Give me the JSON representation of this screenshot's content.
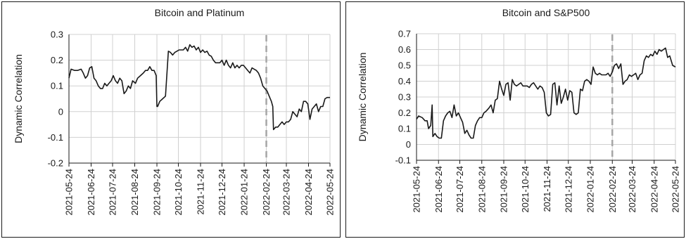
{
  "chart_data": [
    {
      "type": "line",
      "title": "Bitcoin and Platinum",
      "xlabel": "",
      "ylabel": "Dynamic Correlation",
      "ylim": [
        -0.2,
        0.3
      ],
      "yticks": [
        -0.2,
        -0.1,
        0,
        0.1,
        0.2,
        0.3
      ],
      "ytick_labels": [
        "-0.2",
        "-0.1",
        "0",
        "0.1",
        "0.2",
        "0.3"
      ],
      "xlim": [
        "2021-05-24",
        "2022-05-24"
      ],
      "xticks": [
        "2021-05-24",
        "2021-06-24",
        "2021-07-24",
        "2021-08-24",
        "2021-09-24",
        "2021-10-24",
        "2021-11-24",
        "2021-12-24",
        "2022-01-24",
        "2022-02-24",
        "2022-03-24",
        "2022-04-24",
        "2022-05-24"
      ],
      "grid": true,
      "reference_line": {
        "x": "2022-02-24",
        "style": "dashed",
        "color": "#a6a6a6"
      },
      "series": [
        {
          "color": "#1a1a1a",
          "x": [
            "2021-05-24",
            "2021-05-27",
            "2021-06-01",
            "2021-06-05",
            "2021-06-10",
            "2021-06-13",
            "2021-06-16",
            "2021-06-19",
            "2021-06-22",
            "2021-06-25",
            "2021-06-28",
            "2021-07-01",
            "2021-07-04",
            "2021-07-07",
            "2021-07-10",
            "2021-07-13",
            "2021-07-16",
            "2021-07-19",
            "2021-07-22",
            "2021-07-25",
            "2021-07-28",
            "2021-07-31",
            "2021-08-03",
            "2021-08-06",
            "2021-08-09",
            "2021-08-12",
            "2021-08-15",
            "2021-08-18",
            "2021-08-21",
            "2021-08-25",
            "2021-08-28",
            "2021-09-01",
            "2021-09-05",
            "2021-09-08",
            "2021-09-11",
            "2021-09-14",
            "2021-09-17",
            "2021-09-20",
            "2021-09-23",
            "2021-09-24",
            "2021-09-25",
            "2021-09-28",
            "2021-10-02",
            "2021-10-06",
            "2021-10-10",
            "2021-10-13",
            "2021-10-16",
            "2021-10-19",
            "2021-10-22",
            "2021-10-25",
            "2021-10-28",
            "2021-10-31",
            "2021-11-03",
            "2021-11-06",
            "2021-11-09",
            "2021-11-12",
            "2021-11-15",
            "2021-11-18",
            "2021-11-21",
            "2021-11-24",
            "2021-11-27",
            "2021-11-30",
            "2021-12-03",
            "2021-12-06",
            "2021-12-09",
            "2021-12-12",
            "2021-12-15",
            "2021-12-18",
            "2021-12-21",
            "2021-12-24",
            "2021-12-27",
            "2021-12-30",
            "2022-01-02",
            "2022-01-05",
            "2022-01-08",
            "2022-01-11",
            "2022-01-14",
            "2022-01-17",
            "2022-01-20",
            "2022-01-23",
            "2022-01-26",
            "2022-01-29",
            "2022-02-01",
            "2022-02-04",
            "2022-02-07",
            "2022-02-10",
            "2022-02-13",
            "2022-02-16",
            "2022-02-19",
            "2022-02-22",
            "2022-02-25",
            "2022-02-28",
            "2022-03-03",
            "2022-03-05",
            "2022-03-06",
            "2022-03-09",
            "2022-03-12",
            "2022-03-15",
            "2022-03-18",
            "2022-03-21",
            "2022-03-24",
            "2022-03-27",
            "2022-03-30",
            "2022-04-02",
            "2022-04-05",
            "2022-04-08",
            "2022-04-11",
            "2022-04-14",
            "2022-04-17",
            "2022-04-20",
            "2022-04-23",
            "2022-04-26",
            "2022-04-29",
            "2022-05-02",
            "2022-05-05",
            "2022-05-08",
            "2022-05-11",
            "2022-05-14",
            "2022-05-17",
            "2022-05-20",
            "2022-05-24"
          ],
          "values": [
            0.13,
            0.165,
            0.16,
            0.16,
            0.165,
            0.15,
            0.13,
            0.14,
            0.17,
            0.175,
            0.13,
            0.12,
            0.1,
            0.09,
            0.09,
            0.11,
            0.1,
            0.11,
            0.12,
            0.14,
            0.12,
            0.11,
            0.13,
            0.12,
            0.07,
            0.08,
            0.1,
            0.09,
            0.12,
            0.11,
            0.13,
            0.14,
            0.15,
            0.16,
            0.16,
            0.175,
            0.16,
            0.16,
            0.14,
            0.02,
            0.02,
            0.04,
            0.05,
            0.06,
            0.235,
            0.23,
            0.22,
            0.23,
            0.235,
            0.24,
            0.24,
            0.24,
            0.25,
            0.235,
            0.26,
            0.25,
            0.255,
            0.24,
            0.25,
            0.23,
            0.24,
            0.23,
            0.235,
            0.22,
            0.215,
            0.2,
            0.19,
            0.19,
            0.19,
            0.2,
            0.18,
            0.2,
            0.18,
            0.17,
            0.19,
            0.17,
            0.18,
            0.17,
            0.18,
            0.18,
            0.17,
            0.16,
            0.15,
            0.17,
            0.165,
            0.16,
            0.15,
            0.13,
            0.1,
            0.09,
            0.08,
            0.06,
            0.04,
            0.02,
            -0.07,
            -0.06,
            -0.06,
            -0.05,
            -0.04,
            -0.05,
            -0.04,
            -0.04,
            -0.03,
            0.0,
            -0.01,
            -0.02,
            0.01,
            0.0,
            0.04,
            0.04,
            0.03,
            -0.03,
            0.01,
            0.02,
            0.03,
            0.0,
            0.02,
            0.02,
            0.05,
            0.055,
            0.055
          ]
        }
      ]
    },
    {
      "type": "line",
      "title": "Bitcoin and S&P500",
      "xlabel": "",
      "ylabel": "Dynamic Correlation",
      "ylim": [
        -0.1,
        0.7
      ],
      "yticks": [
        -0.1,
        0,
        0.1,
        0.2,
        0.3,
        0.4,
        0.5,
        0.6,
        0.7
      ],
      "ytick_labels": [
        "-0.1",
        "0",
        "0.1",
        "0.2",
        "0.3",
        "0.4",
        "0.5",
        "0.6",
        "0.7"
      ],
      "xlim": [
        "2021-05-24",
        "2022-05-24"
      ],
      "xticks": [
        "2021-05-24",
        "2021-06-24",
        "2021-07-24",
        "2021-08-24",
        "2021-09-24",
        "2021-10-24",
        "2021-11-24",
        "2021-12-24",
        "2022-01-24",
        "2022-02-24",
        "2022-03-24",
        "2022-04-24",
        "2022-05-24"
      ],
      "grid": true,
      "reference_line": {
        "x": "2022-02-24",
        "style": "dashed",
        "color": "#a6a6a6"
      },
      "series": [
        {
          "color": "#1a1a1a",
          "x": [
            "2021-05-24",
            "2021-05-27",
            "2021-06-01",
            "2021-06-05",
            "2021-06-08",
            "2021-06-10",
            "2021-06-13",
            "2021-06-15",
            "2021-06-16",
            "2021-06-19",
            "2021-06-22",
            "2021-06-25",
            "2021-06-28",
            "2021-07-01",
            "2021-07-04",
            "2021-07-07",
            "2021-07-10",
            "2021-07-13",
            "2021-07-16",
            "2021-07-19",
            "2021-07-22",
            "2021-07-25",
            "2021-07-28",
            "2021-07-31",
            "2021-08-03",
            "2021-08-06",
            "2021-08-09",
            "2021-08-12",
            "2021-08-15",
            "2021-08-18",
            "2021-08-21",
            "2021-08-24",
            "2021-08-27",
            "2021-08-30",
            "2021-09-03",
            "2021-09-06",
            "2021-09-09",
            "2021-09-12",
            "2021-09-15",
            "2021-09-18",
            "2021-09-21",
            "2021-09-24",
            "2021-09-27",
            "2021-09-30",
            "2021-10-03",
            "2021-10-06",
            "2021-10-09",
            "2021-10-12",
            "2021-10-15",
            "2021-10-18",
            "2021-10-21",
            "2021-10-24",
            "2021-10-27",
            "2021-10-30",
            "2021-11-02",
            "2021-11-05",
            "2021-11-08",
            "2021-11-11",
            "2021-11-14",
            "2021-11-17",
            "2021-11-20",
            "2021-11-23",
            "2021-11-26",
            "2021-11-29",
            "2021-12-02",
            "2021-12-05",
            "2021-12-08",
            "2021-12-11",
            "2021-12-14",
            "2021-12-17",
            "2021-12-20",
            "2021-12-23",
            "2021-12-26",
            "2021-12-29",
            "2022-01-01",
            "2022-01-04",
            "2022-01-07",
            "2022-01-10",
            "2022-01-13",
            "2022-01-16",
            "2022-01-19",
            "2022-01-22",
            "2022-01-25",
            "2022-01-28",
            "2022-01-31",
            "2022-02-03",
            "2022-02-06",
            "2022-02-09",
            "2022-02-12",
            "2022-02-15",
            "2022-02-18",
            "2022-02-21",
            "2022-02-24",
            "2022-02-27",
            "2022-03-02",
            "2022-03-05",
            "2022-03-08",
            "2022-03-11",
            "2022-03-14",
            "2022-03-17",
            "2022-03-20",
            "2022-03-23",
            "2022-03-26",
            "2022-03-29",
            "2022-04-01",
            "2022-04-04",
            "2022-04-07",
            "2022-04-10",
            "2022-04-13",
            "2022-04-16",
            "2022-04-19",
            "2022-04-22",
            "2022-04-25",
            "2022-04-28",
            "2022-05-01",
            "2022-05-04",
            "2022-05-07",
            "2022-05-10",
            "2022-05-13",
            "2022-05-16",
            "2022-05-20",
            "2022-05-24"
          ],
          "values": [
            0.16,
            0.18,
            0.17,
            0.15,
            0.15,
            0.1,
            0.12,
            0.25,
            0.05,
            0.07,
            0.05,
            0.04,
            0.04,
            0.15,
            0.18,
            0.2,
            0.21,
            0.17,
            0.25,
            0.18,
            0.2,
            0.17,
            0.14,
            0.07,
            0.09,
            0.06,
            0.04,
            0.04,
            0.12,
            0.15,
            0.17,
            0.17,
            0.2,
            0.21,
            0.23,
            0.25,
            0.2,
            0.28,
            0.29,
            0.4,
            0.35,
            0.31,
            0.38,
            0.39,
            0.28,
            0.41,
            0.38,
            0.37,
            0.38,
            0.39,
            0.37,
            0.37,
            0.37,
            0.36,
            0.38,
            0.39,
            0.37,
            0.35,
            0.37,
            0.36,
            0.33,
            0.2,
            0.18,
            0.19,
            0.38,
            0.39,
            0.25,
            0.37,
            0.26,
            0.3,
            0.35,
            0.28,
            0.34,
            0.33,
            0.2,
            0.19,
            0.2,
            0.35,
            0.34,
            0.4,
            0.41,
            0.4,
            0.38,
            0.49,
            0.45,
            0.44,
            0.45,
            0.44,
            0.44,
            0.44,
            0.45,
            0.43,
            0.46,
            0.5,
            0.51,
            0.48,
            0.51,
            0.38,
            0.4,
            0.41,
            0.44,
            0.43,
            0.44,
            0.45,
            0.41,
            0.44,
            0.45,
            0.53,
            0.56,
            0.55,
            0.57,
            0.56,
            0.59,
            0.57,
            0.6,
            0.59,
            0.6,
            0.61,
            0.55,
            0.56,
            0.5,
            0.49
          ]
        }
      ]
    }
  ]
}
